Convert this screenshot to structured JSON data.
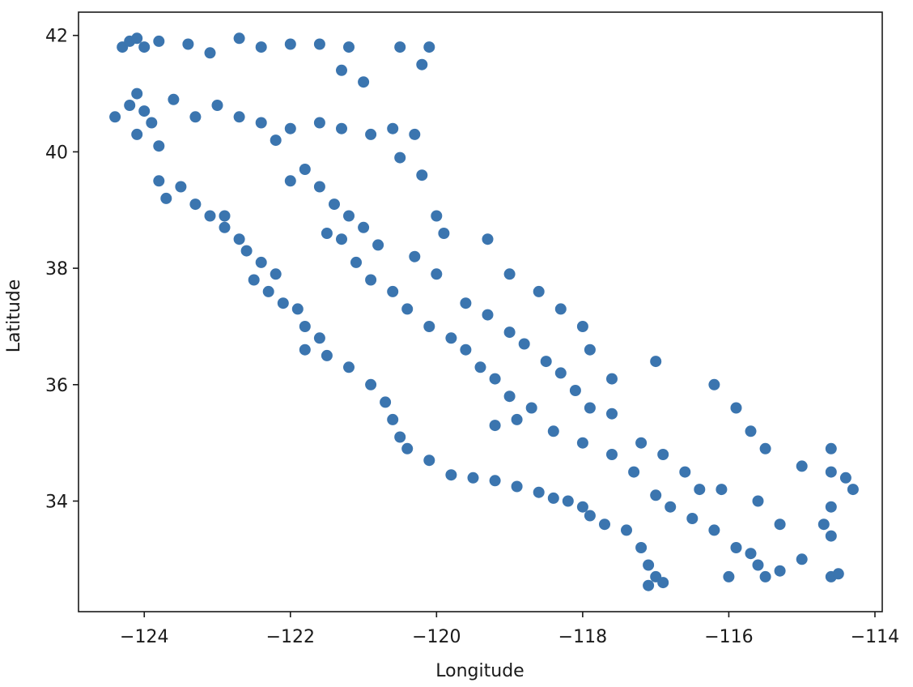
{
  "chart_data": {
    "type": "scatter",
    "title": "",
    "xlabel": "Longitude",
    "ylabel": "Latitude",
    "xlim": [
      -124.9,
      -113.9
    ],
    "ylim": [
      32.1,
      42.4
    ],
    "x_ticks": [
      -124,
      -122,
      -120,
      -118,
      -116,
      -114
    ],
    "x_tick_labels": [
      "−124",
      "−122",
      "−120",
      "−118",
      "−116",
      "−114"
    ],
    "y_ticks": [
      34,
      36,
      38,
      40,
      42
    ],
    "y_tick_labels": [
      "34",
      "36",
      "38",
      "40",
      "42"
    ],
    "grid": false,
    "legend": "none",
    "marker_color": "#3b75af",
    "series": [
      {
        "values": [
          [
            -124.3,
            41.8
          ],
          [
            -124.2,
            41.9
          ],
          [
            -124.1,
            41.95
          ],
          [
            -124.0,
            41.8
          ],
          [
            -123.8,
            41.9
          ],
          [
            -123.4,
            41.85
          ],
          [
            -123.1,
            41.7
          ],
          [
            -122.7,
            41.95
          ],
          [
            -122.4,
            41.8
          ],
          [
            -122.0,
            41.85
          ],
          [
            -121.6,
            41.85
          ],
          [
            -121.2,
            41.8
          ],
          [
            -120.5,
            41.8
          ],
          [
            -120.1,
            41.8
          ],
          [
            -120.2,
            41.5
          ],
          [
            -121.3,
            41.4
          ],
          [
            -121.0,
            41.2
          ],
          [
            -124.4,
            40.6
          ],
          [
            -124.2,
            40.8
          ],
          [
            -124.1,
            41.0
          ],
          [
            -124.0,
            40.7
          ],
          [
            -123.9,
            40.5
          ],
          [
            -124.1,
            40.3
          ],
          [
            -123.8,
            40.1
          ],
          [
            -123.6,
            40.9
          ],
          [
            -123.3,
            40.6
          ],
          [
            -123.0,
            40.8
          ],
          [
            -122.7,
            40.6
          ],
          [
            -122.4,
            40.5
          ],
          [
            -122.2,
            40.2
          ],
          [
            -122.0,
            40.4
          ],
          [
            -121.6,
            40.5
          ],
          [
            -121.3,
            40.4
          ],
          [
            -120.9,
            40.3
          ],
          [
            -120.6,
            40.4
          ],
          [
            -120.3,
            40.3
          ],
          [
            -120.5,
            39.9
          ],
          [
            -120.2,
            39.6
          ],
          [
            -123.8,
            39.5
          ],
          [
            -123.7,
            39.2
          ],
          [
            -123.5,
            39.4
          ],
          [
            -123.3,
            39.1
          ],
          [
            -123.1,
            38.9
          ],
          [
            -122.9,
            38.7
          ],
          [
            -122.7,
            38.5
          ],
          [
            -122.9,
            38.9
          ],
          [
            -122.6,
            38.3
          ],
          [
            -122.4,
            38.1
          ],
          [
            -122.2,
            37.9
          ],
          [
            -122.5,
            37.8
          ],
          [
            -122.3,
            37.6
          ],
          [
            -122.1,
            37.4
          ],
          [
            -121.9,
            37.3
          ],
          [
            -121.8,
            37.0
          ],
          [
            -121.6,
            36.8
          ],
          [
            -121.8,
            36.6
          ],
          [
            -121.5,
            36.5
          ],
          [
            -121.2,
            36.3
          ],
          [
            -120.9,
            36.0
          ],
          [
            -120.7,
            35.7
          ],
          [
            -120.6,
            35.4
          ],
          [
            -120.5,
            35.1
          ],
          [
            -120.4,
            34.9
          ],
          [
            -120.1,
            34.7
          ],
          [
            -119.8,
            34.45
          ],
          [
            -119.5,
            34.4
          ],
          [
            -119.2,
            34.35
          ],
          [
            -118.9,
            34.25
          ],
          [
            -118.6,
            34.15
          ],
          [
            -118.4,
            34.05
          ],
          [
            -118.2,
            34.0
          ],
          [
            -118.0,
            33.9
          ],
          [
            -117.9,
            33.75
          ],
          [
            -117.7,
            33.6
          ],
          [
            -117.4,
            33.5
          ],
          [
            -117.2,
            33.2
          ],
          [
            -117.1,
            32.9
          ],
          [
            -117.0,
            32.7
          ],
          [
            -116.9,
            32.6
          ],
          [
            -117.1,
            32.55
          ],
          [
            -122.0,
            39.5
          ],
          [
            -121.8,
            39.7
          ],
          [
            -121.6,
            39.4
          ],
          [
            -121.4,
            39.1
          ],
          [
            -121.2,
            38.9
          ],
          [
            -121.5,
            38.6
          ],
          [
            -121.3,
            38.5
          ],
          [
            -121.0,
            38.7
          ],
          [
            -120.8,
            38.4
          ],
          [
            -121.1,
            38.1
          ],
          [
            -120.9,
            37.8
          ],
          [
            -120.6,
            37.6
          ],
          [
            -120.4,
            37.3
          ],
          [
            -120.1,
            37.0
          ],
          [
            -119.8,
            36.8
          ],
          [
            -119.6,
            36.6
          ],
          [
            -119.4,
            36.3
          ],
          [
            -119.2,
            36.1
          ],
          [
            -119.0,
            35.8
          ],
          [
            -118.9,
            35.4
          ],
          [
            -119.2,
            35.3
          ],
          [
            -118.7,
            35.6
          ],
          [
            -118.4,
            35.2
          ],
          [
            -118.0,
            35.0
          ],
          [
            -117.6,
            34.8
          ],
          [
            -117.3,
            34.5
          ],
          [
            -117.0,
            34.1
          ],
          [
            -116.8,
            33.9
          ],
          [
            -116.5,
            33.7
          ],
          [
            -116.2,
            33.5
          ],
          [
            -115.9,
            33.2
          ],
          [
            -115.6,
            32.9
          ],
          [
            -115.5,
            32.7
          ],
          [
            -115.3,
            32.8
          ],
          [
            -119.3,
            38.5
          ],
          [
            -119.0,
            37.9
          ],
          [
            -118.6,
            37.6
          ],
          [
            -118.3,
            37.3
          ],
          [
            -118.0,
            37.0
          ],
          [
            -117.9,
            36.6
          ],
          [
            -117.6,
            36.1
          ],
          [
            -117.0,
            36.4
          ],
          [
            -116.2,
            36.0
          ],
          [
            -115.9,
            35.6
          ],
          [
            -115.7,
            35.2
          ],
          [
            -115.5,
            34.9
          ],
          [
            -115.0,
            34.6
          ],
          [
            -114.6,
            34.9
          ],
          [
            -114.6,
            34.5
          ],
          [
            -114.4,
            34.4
          ],
          [
            -114.3,
            34.2
          ],
          [
            -114.6,
            33.9
          ],
          [
            -114.7,
            33.6
          ],
          [
            -114.6,
            33.4
          ],
          [
            -115.0,
            33.0
          ],
          [
            -114.6,
            32.7
          ],
          [
            -114.5,
            32.75
          ],
          [
            -120.0,
            38.9
          ],
          [
            -119.9,
            38.6
          ],
          [
            -120.3,
            38.2
          ],
          [
            -120.0,
            37.9
          ],
          [
            -119.6,
            37.4
          ],
          [
            -119.3,
            37.2
          ],
          [
            -119.0,
            36.9
          ],
          [
            -118.8,
            36.7
          ],
          [
            -118.5,
            36.4
          ],
          [
            -118.3,
            36.2
          ],
          [
            -118.1,
            35.9
          ],
          [
            -117.9,
            35.6
          ],
          [
            -117.6,
            35.5
          ],
          [
            -117.2,
            35.0
          ],
          [
            -116.9,
            34.8
          ],
          [
            -116.6,
            34.5
          ],
          [
            -116.4,
            34.2
          ],
          [
            -116.1,
            34.2
          ],
          [
            -115.6,
            34.0
          ],
          [
            -115.3,
            33.6
          ],
          [
            -115.7,
            33.1
          ],
          [
            -116.0,
            32.7
          ]
        ]
      }
    ]
  }
}
